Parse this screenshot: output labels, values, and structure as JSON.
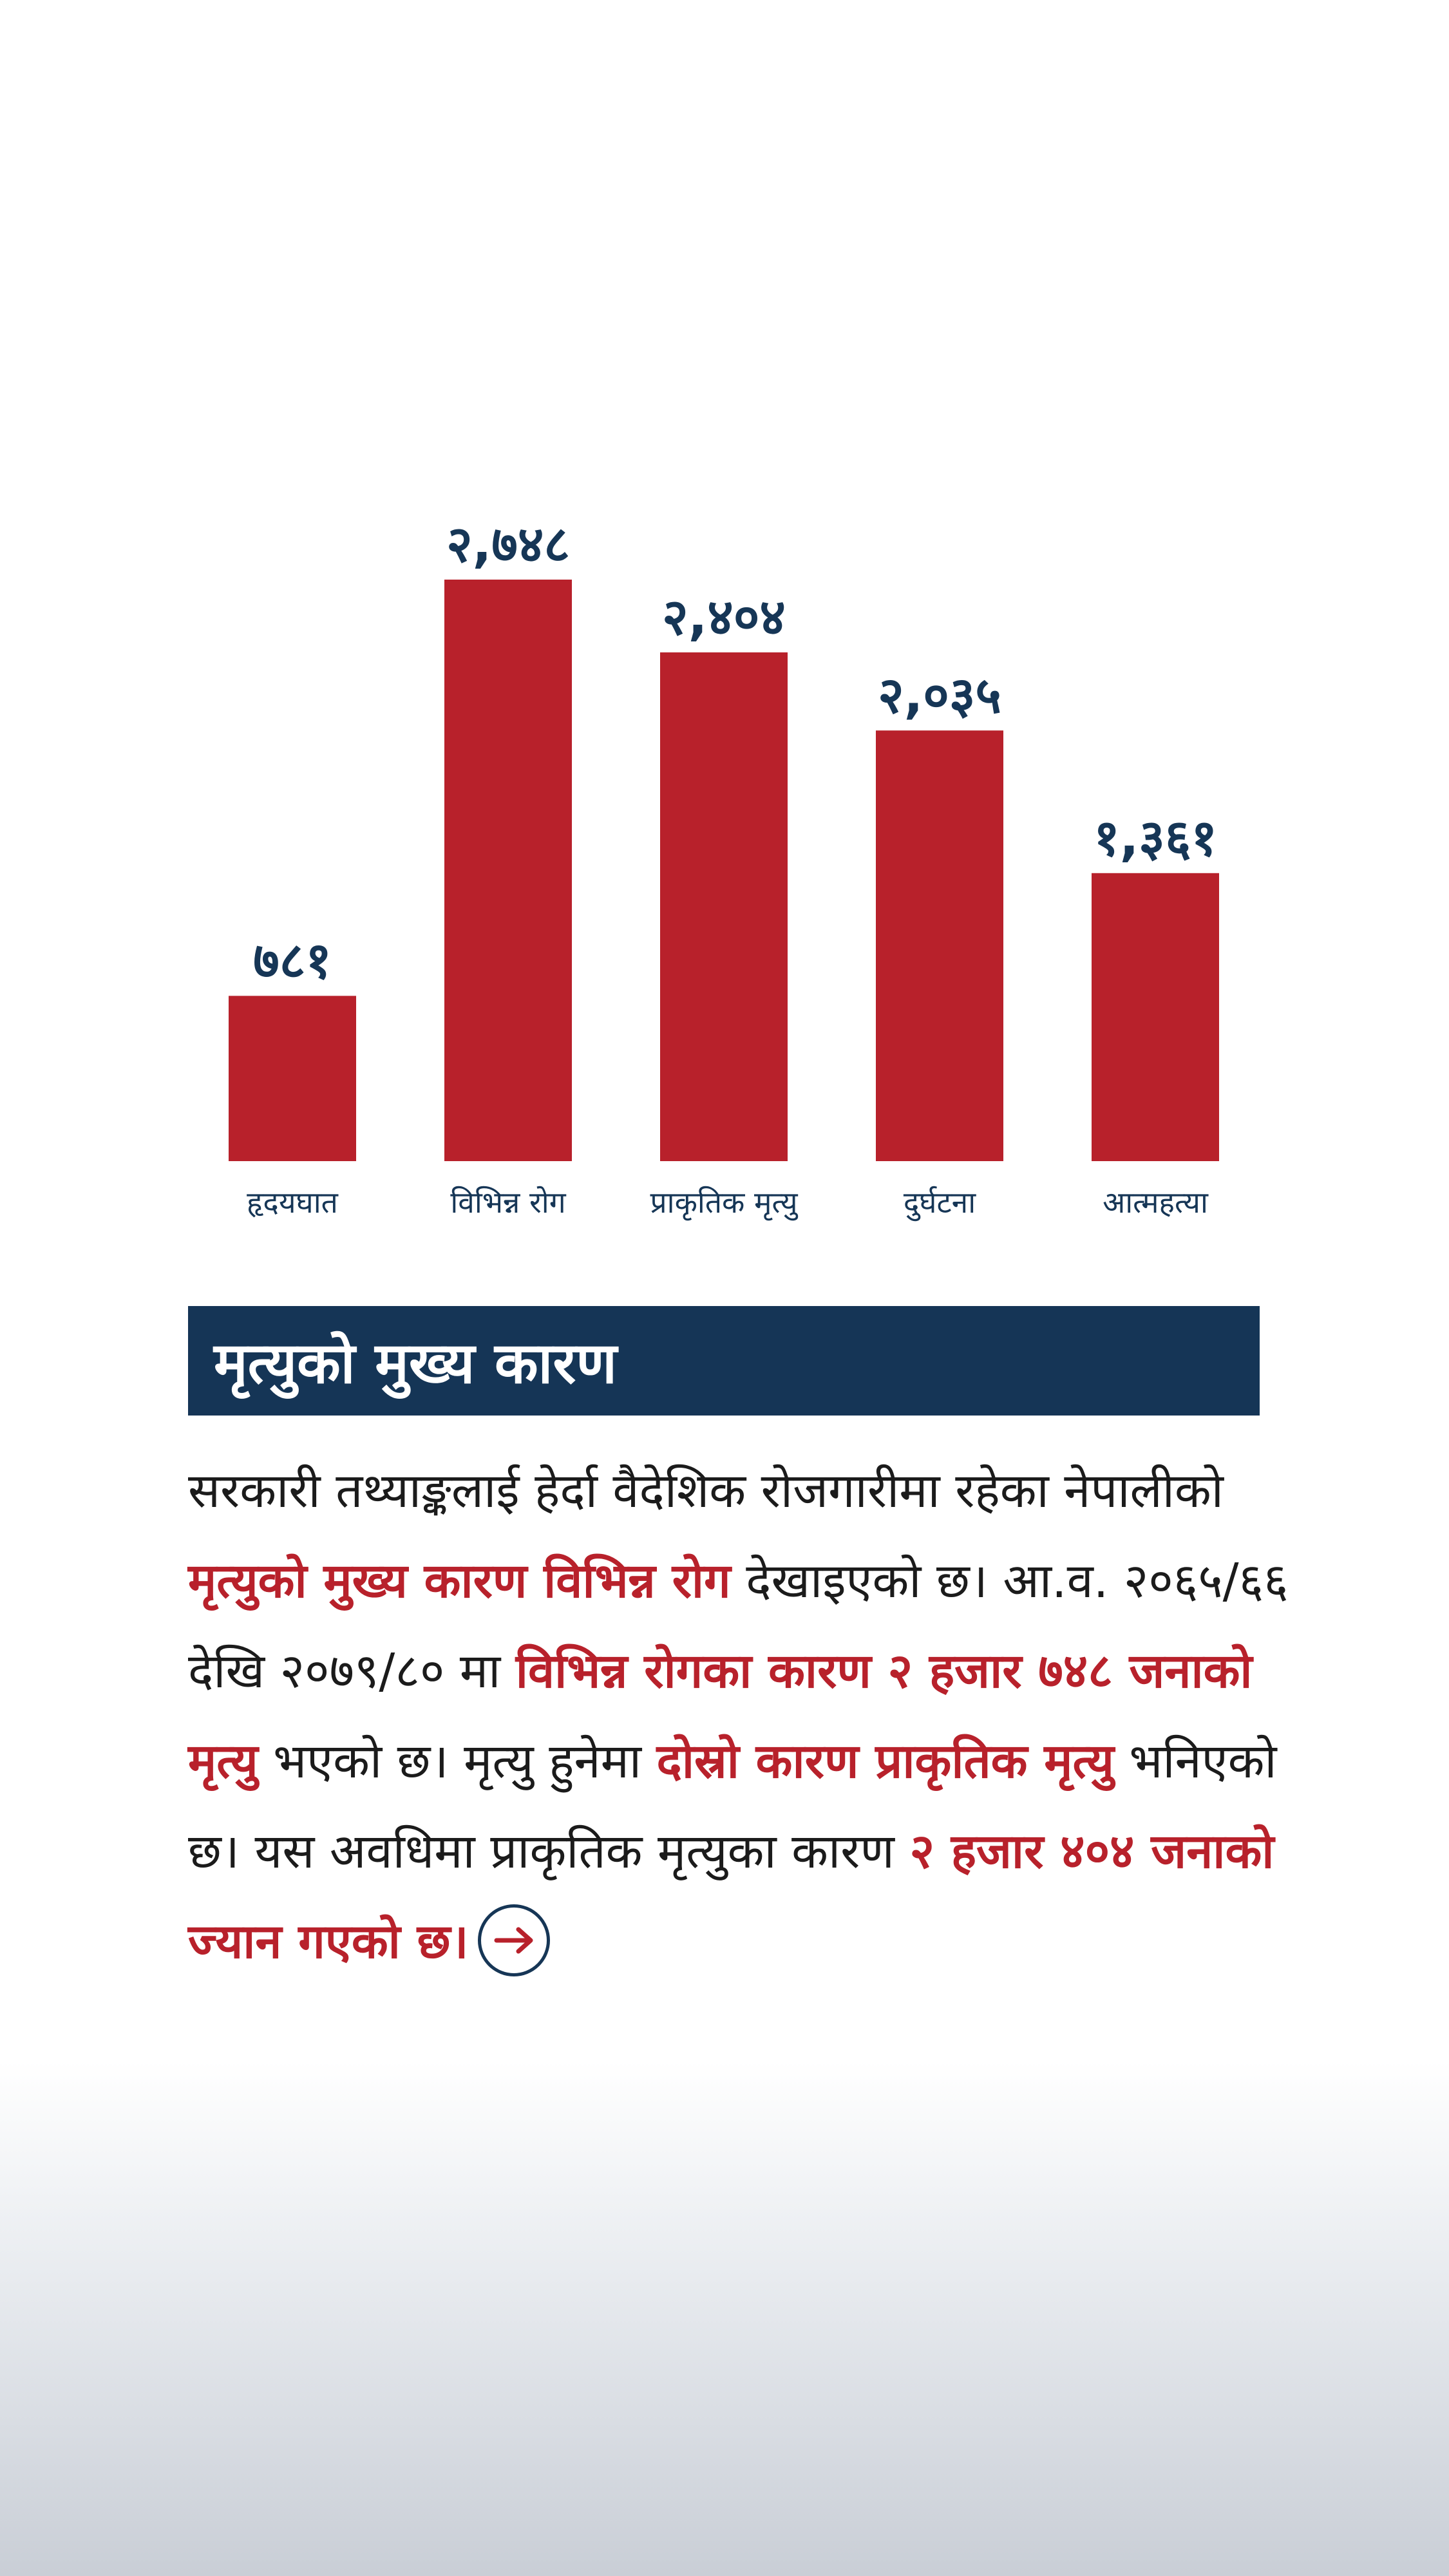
{
  "chart_data": {
    "type": "bar",
    "categories": [
      "हृदयघात",
      "विभिन्न रोग",
      "प्राकृतिक मृत्यु",
      "दुर्घटना",
      "आत्महत्या"
    ],
    "values": [
      781,
      2748,
      2404,
      2035,
      1361
    ],
    "value_labels": [
      "७८१",
      "२,७४८",
      "२,४०४",
      "२,०३५",
      "१,३६१"
    ],
    "title": "",
    "xlabel": "",
    "ylabel": "",
    "bar_color": "#b8212b",
    "label_color": "#163656",
    "grid": false,
    "legend": "none"
  },
  "heading": "मृत्युको मुख्य कारण",
  "body": [
    {
      "text": "सरकारी तथ्याङ्कलाई हेर्दा वैदेशिक रोजगारीमा रहेका नेपालीको ",
      "hl": false
    },
    {
      "text": "मृत्युको मुख्य कारण विभिन्न रोग",
      "hl": true
    },
    {
      "text": " देखाइएको छ। आ.व. २०६५/६६ देखि २०७९/८० मा ",
      "hl": false
    },
    {
      "text": "विभिन्न रोगका कारण २ हजार ७४८ जनाको मृत्यु",
      "hl": true
    },
    {
      "text": " भएको छ। मृत्यु हुनेमा ",
      "hl": false
    },
    {
      "text": "दोस्रो कारण प्राकृतिक मृत्यु",
      "hl": true
    },
    {
      "text": " भनिएको छ। यस अवधिमा प्राकृतिक मृत्युका कारण ",
      "hl": false
    },
    {
      "text": "२ हजार ४०४ जनाको ज्यान गएको छ।",
      "hl": true
    }
  ],
  "colors": {
    "accent": "#b8212b",
    "navy": "#153556",
    "text": "#1b1b1b"
  },
  "icons": {
    "more": "arrow-right-circle-icon"
  }
}
